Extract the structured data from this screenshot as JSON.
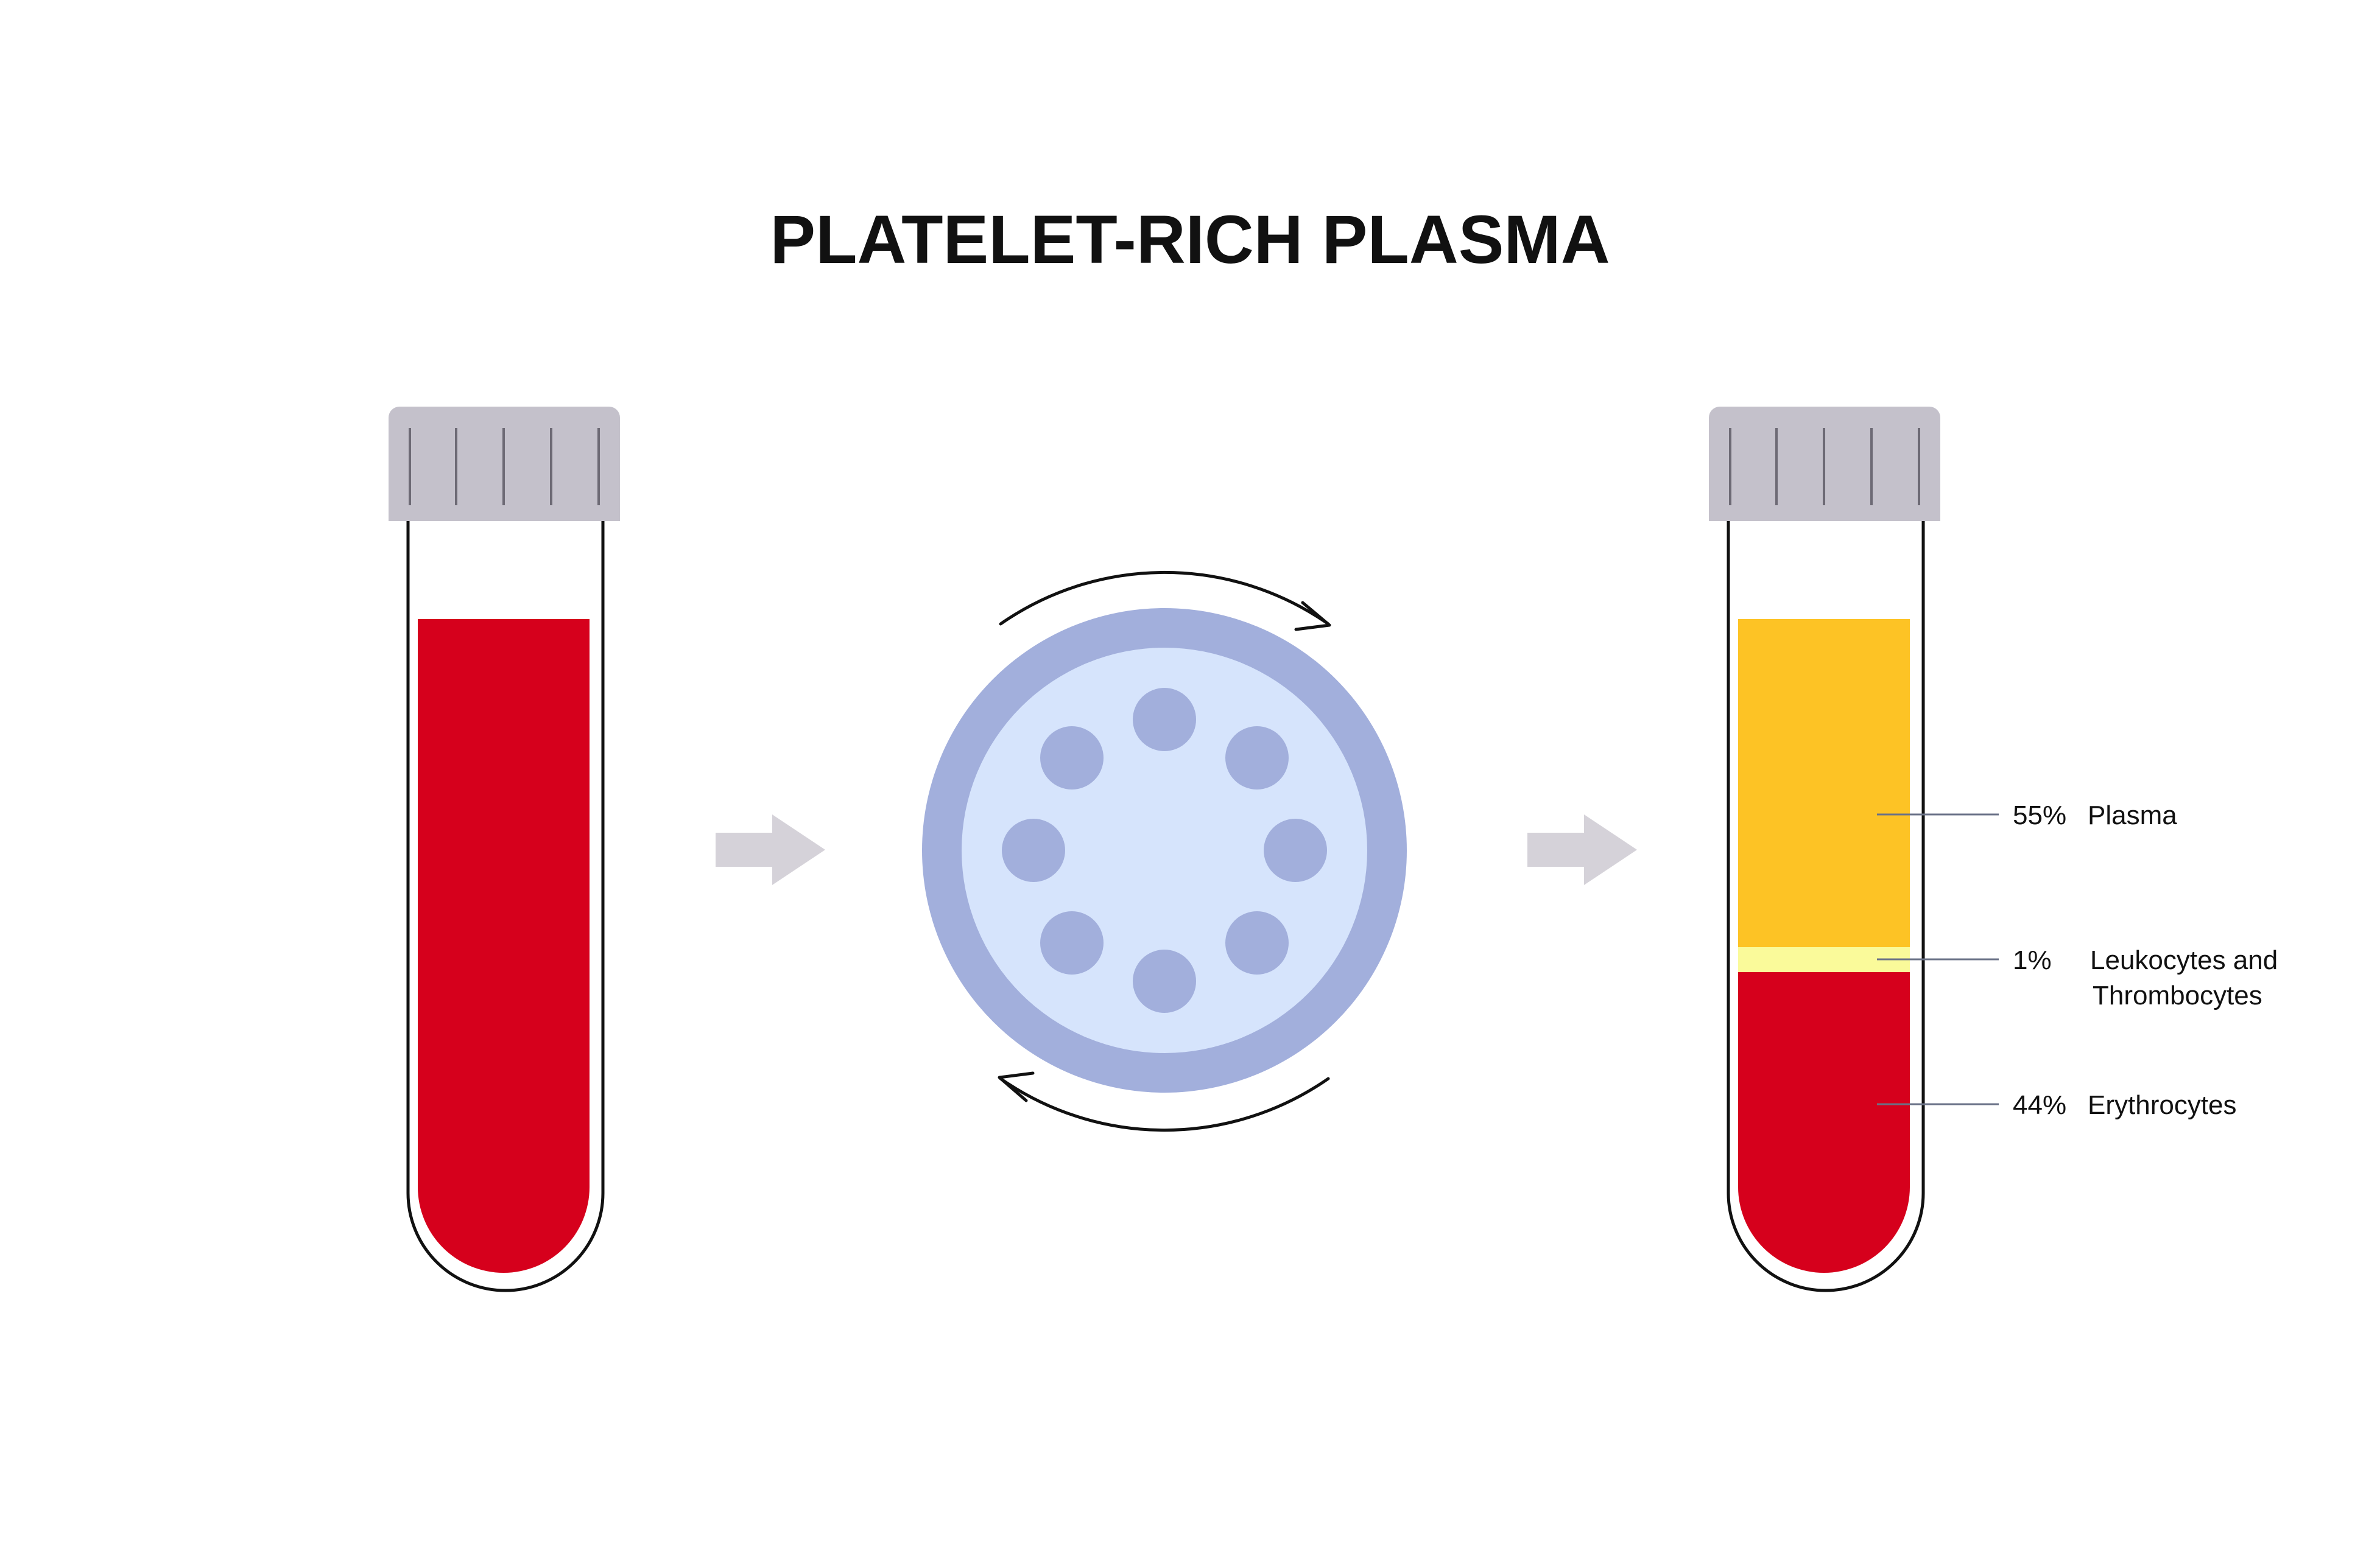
{
  "title": "PLATELET-RICH PLASMA",
  "colors": {
    "blood_red": "#d6001c",
    "plasma_yellow": "#fdc325",
    "buffy_coat": "#fafa9a",
    "cap_gray": "#c4c1cb",
    "cap_lines": "#6d6a75",
    "arrow_gray": "#d5d2d9",
    "rotor_outer": "#a2afdc",
    "rotor_inner": "#d6e4fc",
    "rotor_holes": "#a2afdc",
    "tube_outline": "#111111",
    "leader_line": "#6a7287",
    "text": "#111111"
  },
  "icons": {
    "flow_arrow": "right-arrow-icon",
    "rotation": "rotation-arrows-icon"
  },
  "labels": {
    "plasma": {
      "percent": "55%",
      "name": "Plasma"
    },
    "buffy": {
      "percent": "1%",
      "name_line1": "Leukocytes and",
      "name_line2": "Thrombocytes"
    },
    "erythrocytes": {
      "percent": "44%",
      "name": "Erythrocytes"
    }
  }
}
